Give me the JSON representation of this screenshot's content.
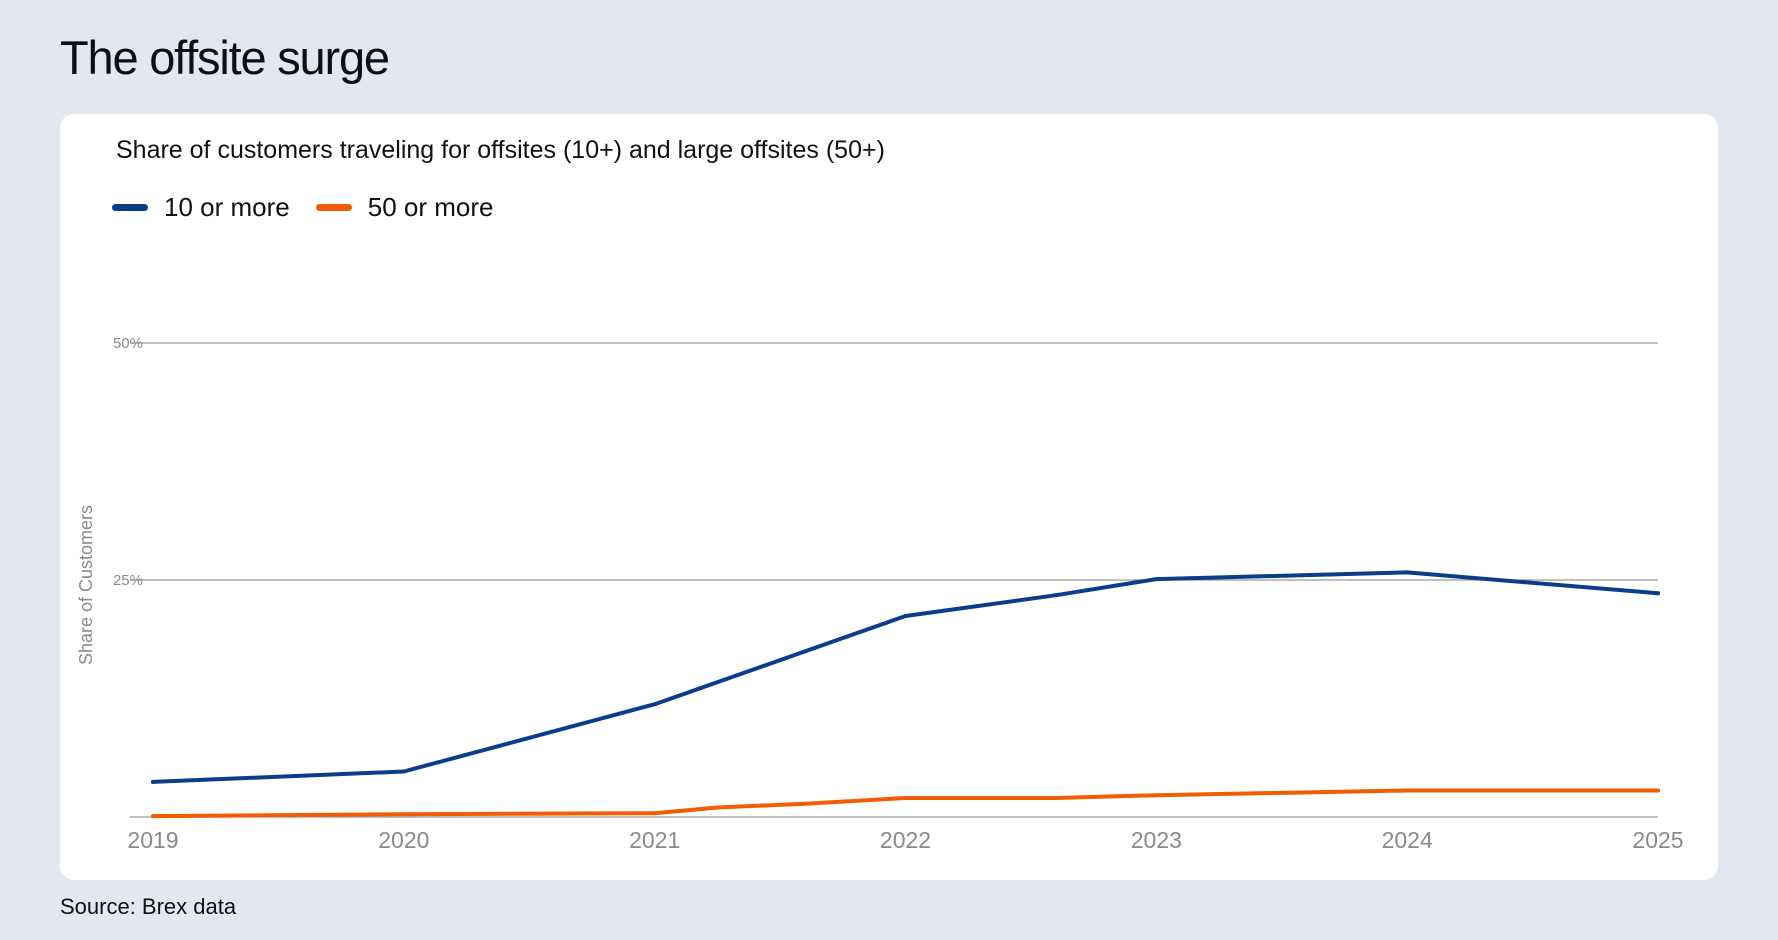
{
  "title": "The offsite surge",
  "source": "Source: Brex data",
  "colors": {
    "series_10": "#0b3d8c",
    "series_50": "#f25c05",
    "grid": "#9a9a9a",
    "tick_text": "#8a8a8a"
  },
  "chart_data": {
    "type": "line",
    "title": "Share of customers traveling for offsites (10+) and large offsites (50+)",
    "xlabel": "",
    "ylabel": "Share of Customers",
    "x": [
      2019,
      2020,
      2021,
      2022,
      2023,
      2024,
      2025
    ],
    "xlim": [
      2019,
      2025
    ],
    "ylim": [
      0,
      50
    ],
    "yticks": [
      0,
      25,
      50
    ],
    "ytick_labels": [
      "",
      "25%",
      "50%"
    ],
    "xtick_labels": [
      "2019",
      "2020",
      "2021",
      "2022",
      "2023",
      "2024",
      "2025"
    ],
    "grid": true,
    "legend_position": "top-left",
    "series": [
      {
        "name": "10 or more",
        "color": "#0b3d8c",
        "points": [
          [
            2019,
            3.7
          ],
          [
            2020,
            4.8
          ],
          [
            2021,
            11.9
          ],
          [
            2022,
            21.2
          ],
          [
            2022.6,
            23.4
          ],
          [
            2023,
            25.1
          ],
          [
            2024,
            25.8
          ],
          [
            2025,
            23.6
          ]
        ]
      },
      {
        "name": "50 or more",
        "color": "#f25c05",
        "points": [
          [
            2019,
            0.1
          ],
          [
            2020,
            0.3
          ],
          [
            2021,
            0.4
          ],
          [
            2021.25,
            1.0
          ],
          [
            2021.6,
            1.4
          ],
          [
            2022,
            2.0
          ],
          [
            2022.6,
            2.0
          ],
          [
            2023,
            2.3
          ],
          [
            2024,
            2.8
          ],
          [
            2025,
            2.8
          ]
        ]
      }
    ]
  }
}
